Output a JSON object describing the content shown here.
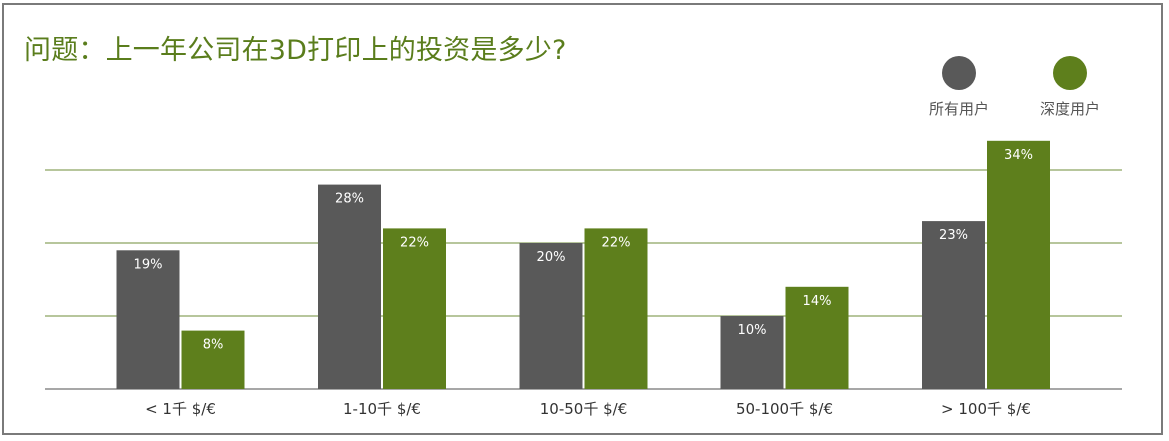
{
  "title": "问题：上一年公司在3D打印上的投资是多少?",
  "colors": {
    "series_all": "#595959",
    "series_deep": "#5e7f1c",
    "gridline": "#6f8e3a",
    "axis": "#8a8a8a",
    "title": "#5a7d1c"
  },
  "legend": [
    {
      "label": "所有用户",
      "color": "#595959"
    },
    {
      "label": "深度用户",
      "color": "#5e7f1c"
    }
  ],
  "chart_data": {
    "type": "bar",
    "title": "问题：上一年公司在3D打印上的投资是多少?",
    "categories": [
      "< 1千 $/€",
      "1-10千 $/€",
      "10-50千 $/€",
      "50-100千 $/€",
      "> 100千 $/€"
    ],
    "series": [
      {
        "name": "所有用户",
        "values": [
          19,
          28,
          20,
          10,
          23
        ],
        "labels": [
          "19%",
          "28%",
          "20%",
          "10%",
          "23%"
        ]
      },
      {
        "name": "深度用户",
        "values": [
          8,
          22,
          22,
          14,
          34
        ],
        "labels": [
          "8%",
          "22%",
          "22%",
          "14%",
          "34%"
        ]
      }
    ],
    "ylim": [
      0,
      30
    ],
    "gridlines": [
      10,
      20,
      30
    ],
    "grid": true,
    "legend_position": "top-right",
    "xlabel": "",
    "ylabel": ""
  }
}
